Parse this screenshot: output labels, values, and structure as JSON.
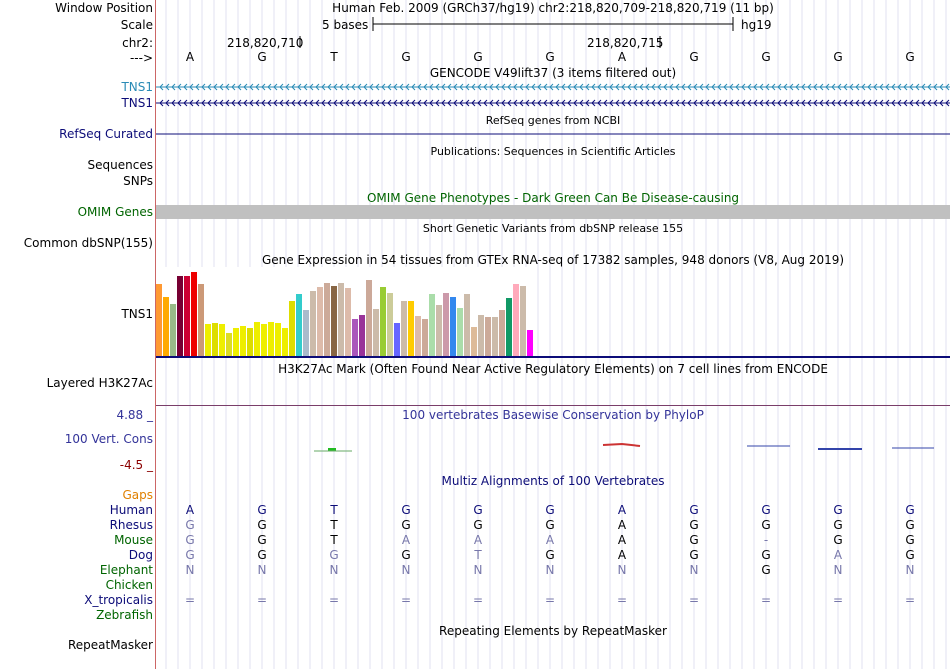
{
  "header": {
    "window_position_label": "Window Position",
    "scale_label": "Scale",
    "chrom_label": "chr2:",
    "arrow_label": "--->",
    "assembly_text": "Human Feb. 2009 (GRCh37/hg19)   chr2:218,820,709-218,820,719 (11 bp)",
    "scale_text": "5 bases",
    "db_text": "hg19",
    "pos1": "218,820,710",
    "pos2": "218,820,715",
    "bases": [
      "A",
      "G",
      "T",
      "G",
      "G",
      "G",
      "A",
      "G",
      "G",
      "G",
      "G"
    ]
  },
  "tracks": {
    "gencode": {
      "title": "GENCODE V49lift37 (3 items filtered out)",
      "items": [
        "TNS1",
        "TNS1"
      ],
      "colors": [
        "#2a8bb6",
        "#0c0c78"
      ]
    },
    "refseq": {
      "title": "RefSeq genes from NCBI",
      "label": "RefSeq Curated",
      "color": "#0c0c78"
    },
    "publications": {
      "title": "Publications: Sequences in Scientific Articles",
      "label": "Sequences"
    },
    "snps": {
      "label": "SNPs"
    },
    "omim": {
      "title": "OMIM Gene Phenotypes - Dark Green Can Be Disease-causing",
      "label": "OMIM Genes",
      "color": "#006400"
    },
    "dbsnp": {
      "title": "Short Genetic Variants from dbSNP release 155",
      "label": "Common dbSNP(155)"
    },
    "gtex": {
      "title": "Gene Expression in 54 tissues from GTEx RNA-seq of 17382 samples, 948 donors (V8, Aug 2019)",
      "label": "TNS1"
    },
    "h3k27ac": {
      "title": "H3K27Ac Mark (Often Found Near Active Regulatory Elements) on 7 cell lines from ENCODE",
      "label": "Layered H3K27Ac"
    },
    "phylop": {
      "title": "100 vertebrates Basewise Conservation by PhyloP",
      "label": "100 Vert. Cons",
      "max": "4.88 _",
      "min": "-4.5 _"
    },
    "multiz": {
      "title": "Multiz Alignments of 100 Vertebrates",
      "gaps_label": "Gaps",
      "species": [
        {
          "name": "Human",
          "color": "#0c0c78",
          "bases": [
            "A",
            "G",
            "T",
            "G",
            "G",
            "G",
            "A",
            "G",
            "G",
            "G",
            "G"
          ]
        },
        {
          "name": "Rhesus",
          "color": "#0c0c78",
          "bases": [
            "G",
            "G",
            "T",
            "G",
            "G",
            "G",
            "A",
            "G",
            "G",
            "G",
            "G"
          ]
        },
        {
          "name": "Mouse",
          "color": "#006400",
          "bases": [
            "G",
            "G",
            "T",
            "A",
            "A",
            "A",
            "A",
            "G",
            "-",
            "G",
            "G"
          ]
        },
        {
          "name": "Dog",
          "color": "#0c0c78",
          "bases": [
            "G",
            "G",
            "G",
            "G",
            "T",
            "G",
            "A",
            "G",
            "G",
            "A",
            "G"
          ]
        },
        {
          "name": "Elephant",
          "color": "#006400",
          "bases": [
            "N",
            "N",
            "N",
            "N",
            "N",
            "N",
            "N",
            "N",
            "G",
            "N",
            "N"
          ]
        },
        {
          "name": "Chicken",
          "color": "#006400",
          "bases": [
            "",
            "",
            "",
            "",
            "",
            "",
            "",
            "",
            "",
            "",
            ""
          ]
        },
        {
          "name": "X_tropicalis",
          "color": "#0c0c78",
          "bases": [
            "=",
            "=",
            "=",
            "=",
            "=",
            "=",
            "=",
            "=",
            "=",
            "=",
            "="
          ]
        },
        {
          "name": "Zebrafish",
          "color": "#006400",
          "bases": [
            "",
            "",
            "",
            "",
            "",
            "",
            "",
            "",
            "",
            "",
            ""
          ]
        }
      ]
    },
    "repeatmasker": {
      "title": "Repeating Elements by RepeatMasker",
      "label": "RepeatMasker"
    }
  },
  "gtex_values": [
    0.52,
    0.43,
    0.38,
    0.58,
    0.58,
    0.61,
    0.52,
    0.23,
    0.24,
    0.23,
    0.17,
    0.2,
    0.22,
    0.2,
    0.25,
    0.23,
    0.25,
    0.24,
    0.2,
    0.4,
    0.45,
    0.33,
    0.47,
    0.5,
    0.53,
    0.51,
    0.53,
    0.49,
    0.27,
    0.3,
    0.55,
    0.34,
    0.5,
    0.46,
    0.24,
    0.4,
    0.4,
    0.29,
    0.27,
    0.45,
    0.37,
    0.46,
    0.43,
    0.35,
    0.45,
    0.21,
    0.3,
    0.28,
    0.28,
    0.33,
    0.42,
    0.52,
    0.51,
    0.19
  ],
  "gtex_colors": [
    "#ff9933",
    "#ffaa00",
    "#99bb88",
    "#770033",
    "#cc0033",
    "#ee0000",
    "#cc9977",
    "#eeee00",
    "#dddd00",
    "#eeee00",
    "#dddd22",
    "#eeee00",
    "#eeee00",
    "#dddd00",
    "#eeee00",
    "#eeee00",
    "#eeee00",
    "#eeee00",
    "#eeee00",
    "#dddd00",
    "#33cccc",
    "#aabbcc",
    "#ccbbaa",
    "#ddbbaa",
    "#ccaa99",
    "#886644",
    "#ccbbaa",
    "#ddbbaa",
    "#aa55bb",
    "#993399",
    "#cca999",
    "#ccbbaa",
    "#99cc33",
    "#cccc99",
    "#6666ff",
    "#ccbbaa",
    "#ffcc00",
    "#ddbbaa",
    "#ccaa99",
    "#aaddaa",
    "#ccbbaa",
    "#cc99aa",
    "#3388ee",
    "#aaddaa",
    "#ccbbaa",
    "#ddbb99",
    "#ccbbaa",
    "#ccaa99",
    "#ccbbaa",
    "#ccaa99",
    "#119966",
    "#ffaabb",
    "#ccbbaa",
    "#ff00ff"
  ],
  "colors": {
    "guide": "#e2e2f2",
    "label_border": "#cc6666",
    "omim_bar": "#c0c0c0",
    "gencode_line": "#2a8bb6"
  }
}
